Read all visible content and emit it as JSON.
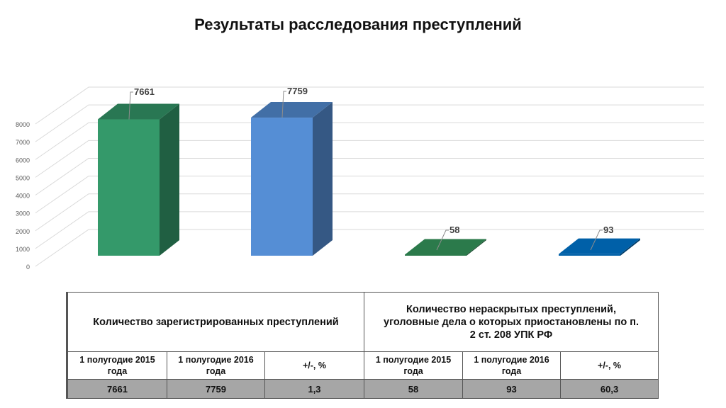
{
  "title": "Результаты расследования преступлений",
  "chart_data": {
    "type": "bar",
    "categories": [
      "",
      "",
      "",
      ""
    ],
    "values": [
      7661,
      7759,
      58,
      93
    ],
    "data_labels": [
      "7661",
      "7759",
      "58",
      "93"
    ],
    "colors": [
      "#34996a",
      "#558ed5",
      "#2b7a4b",
      "#0060a8"
    ],
    "ylim": [
      0,
      8000
    ],
    "yticks": [
      "0",
      "1000",
      "2000",
      "3000",
      "4000",
      "5000",
      "6000",
      "7000",
      "8000"
    ],
    "grid": true,
    "legend": "none",
    "style": "3d-column"
  },
  "table": {
    "group1": "Количество зарегистрированных преступлений",
    "group2_lines": [
      "Количество нераскрытых преступлений,",
      "уголовные дела о которых приостановлены по п.",
      "2 ст. 208 УПК РФ"
    ],
    "subheaders": [
      [
        "1 полугодие 2015",
        "года"
      ],
      [
        "1 полугодие 2016",
        "года"
      ],
      [
        "+/-, %",
        ""
      ],
      [
        "1 полугодие 2015",
        "года"
      ],
      [
        "1 полугодие 2016",
        "года"
      ],
      [
        "+/-, %",
        ""
      ]
    ],
    "values": [
      "7661",
      "7759",
      "1,3",
      "58",
      "93",
      "60,3"
    ]
  }
}
